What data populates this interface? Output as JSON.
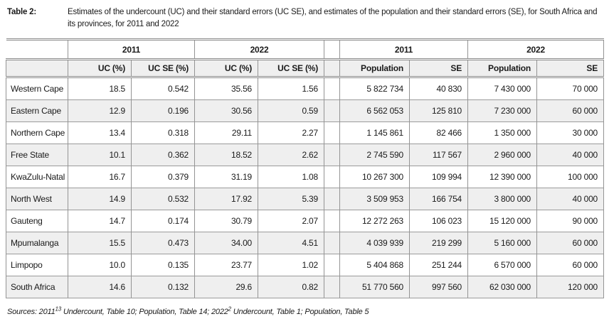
{
  "title": {
    "label": "Table 2:",
    "text": "Estimates of the undercount (UC) and their standard errors (UC SE), and estimates of the population and their standard errors (SE), for South Africa and its provinces, for 2011 and 2022"
  },
  "table": {
    "group_headers": [
      "2011",
      "2022",
      "2011",
      "2022"
    ],
    "col_headers": [
      "UC (%)",
      "UC SE (%)",
      "UC (%)",
      "UC SE (%)",
      "Population",
      "SE",
      "Population",
      "SE"
    ],
    "rows": [
      {
        "province": "Western Cape",
        "values": [
          "18.5",
          "0.542",
          "35.56",
          "1.56",
          "5 822 734",
          "40 830",
          "7 430 000",
          "70 000"
        ]
      },
      {
        "province": "Eastern Cape",
        "values": [
          "12.9",
          "0.196",
          "30.56",
          "0.59",
          "6 562 053",
          "125 810",
          "7 230 000",
          "60 000"
        ]
      },
      {
        "province": "Northern Cape",
        "values": [
          "13.4",
          "0.318",
          "29.11",
          "2.27",
          "1 145 861",
          "82 466",
          "1 350 000",
          "30 000"
        ]
      },
      {
        "province": "Free State",
        "values": [
          "10.1",
          "0.362",
          "18.52",
          "2.62",
          "2 745 590",
          "117 567",
          "2 960 000",
          "40 000"
        ]
      },
      {
        "province": "KwaZulu-Natal",
        "values": [
          "16.7",
          "0.379",
          "31.19",
          "1.08",
          "10 267 300",
          "109 994",
          "12 390 000",
          "100 000"
        ]
      },
      {
        "province": "North West",
        "values": [
          "14.9",
          "0.532",
          "17.92",
          "5.39",
          "3 509 953",
          "166 754",
          "3 800 000",
          "40 000"
        ]
      },
      {
        "province": "Gauteng",
        "values": [
          "14.7",
          "0.174",
          "30.79",
          "2.07",
          "12 272 263",
          "106 023",
          "15 120 000",
          "90 000"
        ]
      },
      {
        "province": "Mpumalanga",
        "values": [
          "15.5",
          "0.473",
          "34.00",
          "4.51",
          "4 039 939",
          "219 299",
          "5 160 000",
          "60 000"
        ]
      },
      {
        "province": "Limpopo",
        "values": [
          "10.0",
          "0.135",
          "23.77",
          "1.02",
          "5 404 868",
          "251 244",
          "6 570 000",
          "60 000"
        ]
      },
      {
        "province": "South Africa",
        "values": [
          "14.6",
          "0.132",
          "29.6",
          "0.82",
          "51 770 560",
          "997 560",
          "62 030 000",
          "120 000"
        ]
      }
    ]
  },
  "source": {
    "prefix": "Sources: 2011",
    "sup1": "13",
    "mid": " Undercount, Table 10; Population, Table 14; 2022",
    "sup2": "2",
    "suffix": " Undercount, Table 1; Population, Table 5"
  },
  "colors": {
    "stripe": "#efefef",
    "grid_line": "#949494",
    "text": "#1a1a1a"
  }
}
